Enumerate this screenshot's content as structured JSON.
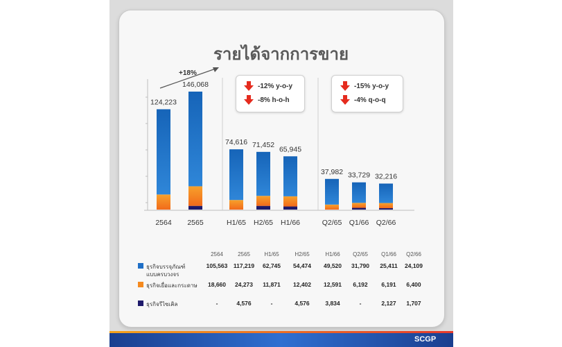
{
  "title": "รายได้จากการขาย",
  "growth_label": "+18%",
  "box1": {
    "line1": "-12% y-o-y",
    "line2": "-8% h-o-h"
  },
  "box2": {
    "line1": "-15% y-o-y",
    "line2": "-4% q-o-q"
  },
  "brand": "SCGP",
  "colors": {
    "packaging": "#1f6fc6",
    "fiber": "#f58a1f",
    "recycling": "#1e1a6b"
  },
  "chart_data": {
    "type": "bar",
    "stacked": true,
    "categories": [
      "2564",
      "2565",
      "H1/65",
      "H2/65",
      "H1/66",
      "Q2/65",
      "Q1/66",
      "Q2/66"
    ],
    "totals": [
      "124,223",
      "146,068",
      "74,616",
      "71,452",
      "65,945",
      "37,982",
      "33,729",
      "32,216"
    ],
    "series": [
      {
        "name": "ธุรกิจบรรจุภัณฑ์แบบครบวงจร",
        "values": [
          105563,
          117219,
          62745,
          54474,
          49520,
          31790,
          25411,
          24109
        ]
      },
      {
        "name": "ธุรกิจเยื่อและกระดาษ",
        "values": [
          18660,
          24273,
          11871,
          12402,
          12591,
          6192,
          6191,
          6400
        ]
      },
      {
        "name": "ธุรกิจรีไซเคิล",
        "values": [
          0,
          4576,
          0,
          4576,
          3834,
          0,
          2127,
          1707
        ]
      }
    ]
  },
  "table": {
    "headers": [
      "2564",
      "2565",
      "H1/65",
      "H2/65",
      "H1/66",
      "Q2/65",
      "Q1/66",
      "Q2/66"
    ],
    "rows": [
      {
        "label1": "ธุรกิจบรรจุภัณฑ์",
        "label2": "แบบครบวงจร",
        "cells": [
          "105,563",
          "117,219",
          "62,745",
          "54,474",
          "49,520",
          "31,790",
          "25,411",
          "24,109"
        ]
      },
      {
        "label1": "ธุรกิจเยื่อและกระดาษ",
        "label2": "",
        "cells": [
          "18,660",
          "24,273",
          "11,871",
          "12,402",
          "12,591",
          "6,192",
          "6,191",
          "6,400"
        ]
      },
      {
        "label1": "ธุรกิจรีไซเคิล",
        "label2": "",
        "cells": [
          "-",
          "4,576",
          "-",
          "4,576",
          "3,834",
          "-",
          "2,127",
          "1,707"
        ]
      }
    ]
  }
}
